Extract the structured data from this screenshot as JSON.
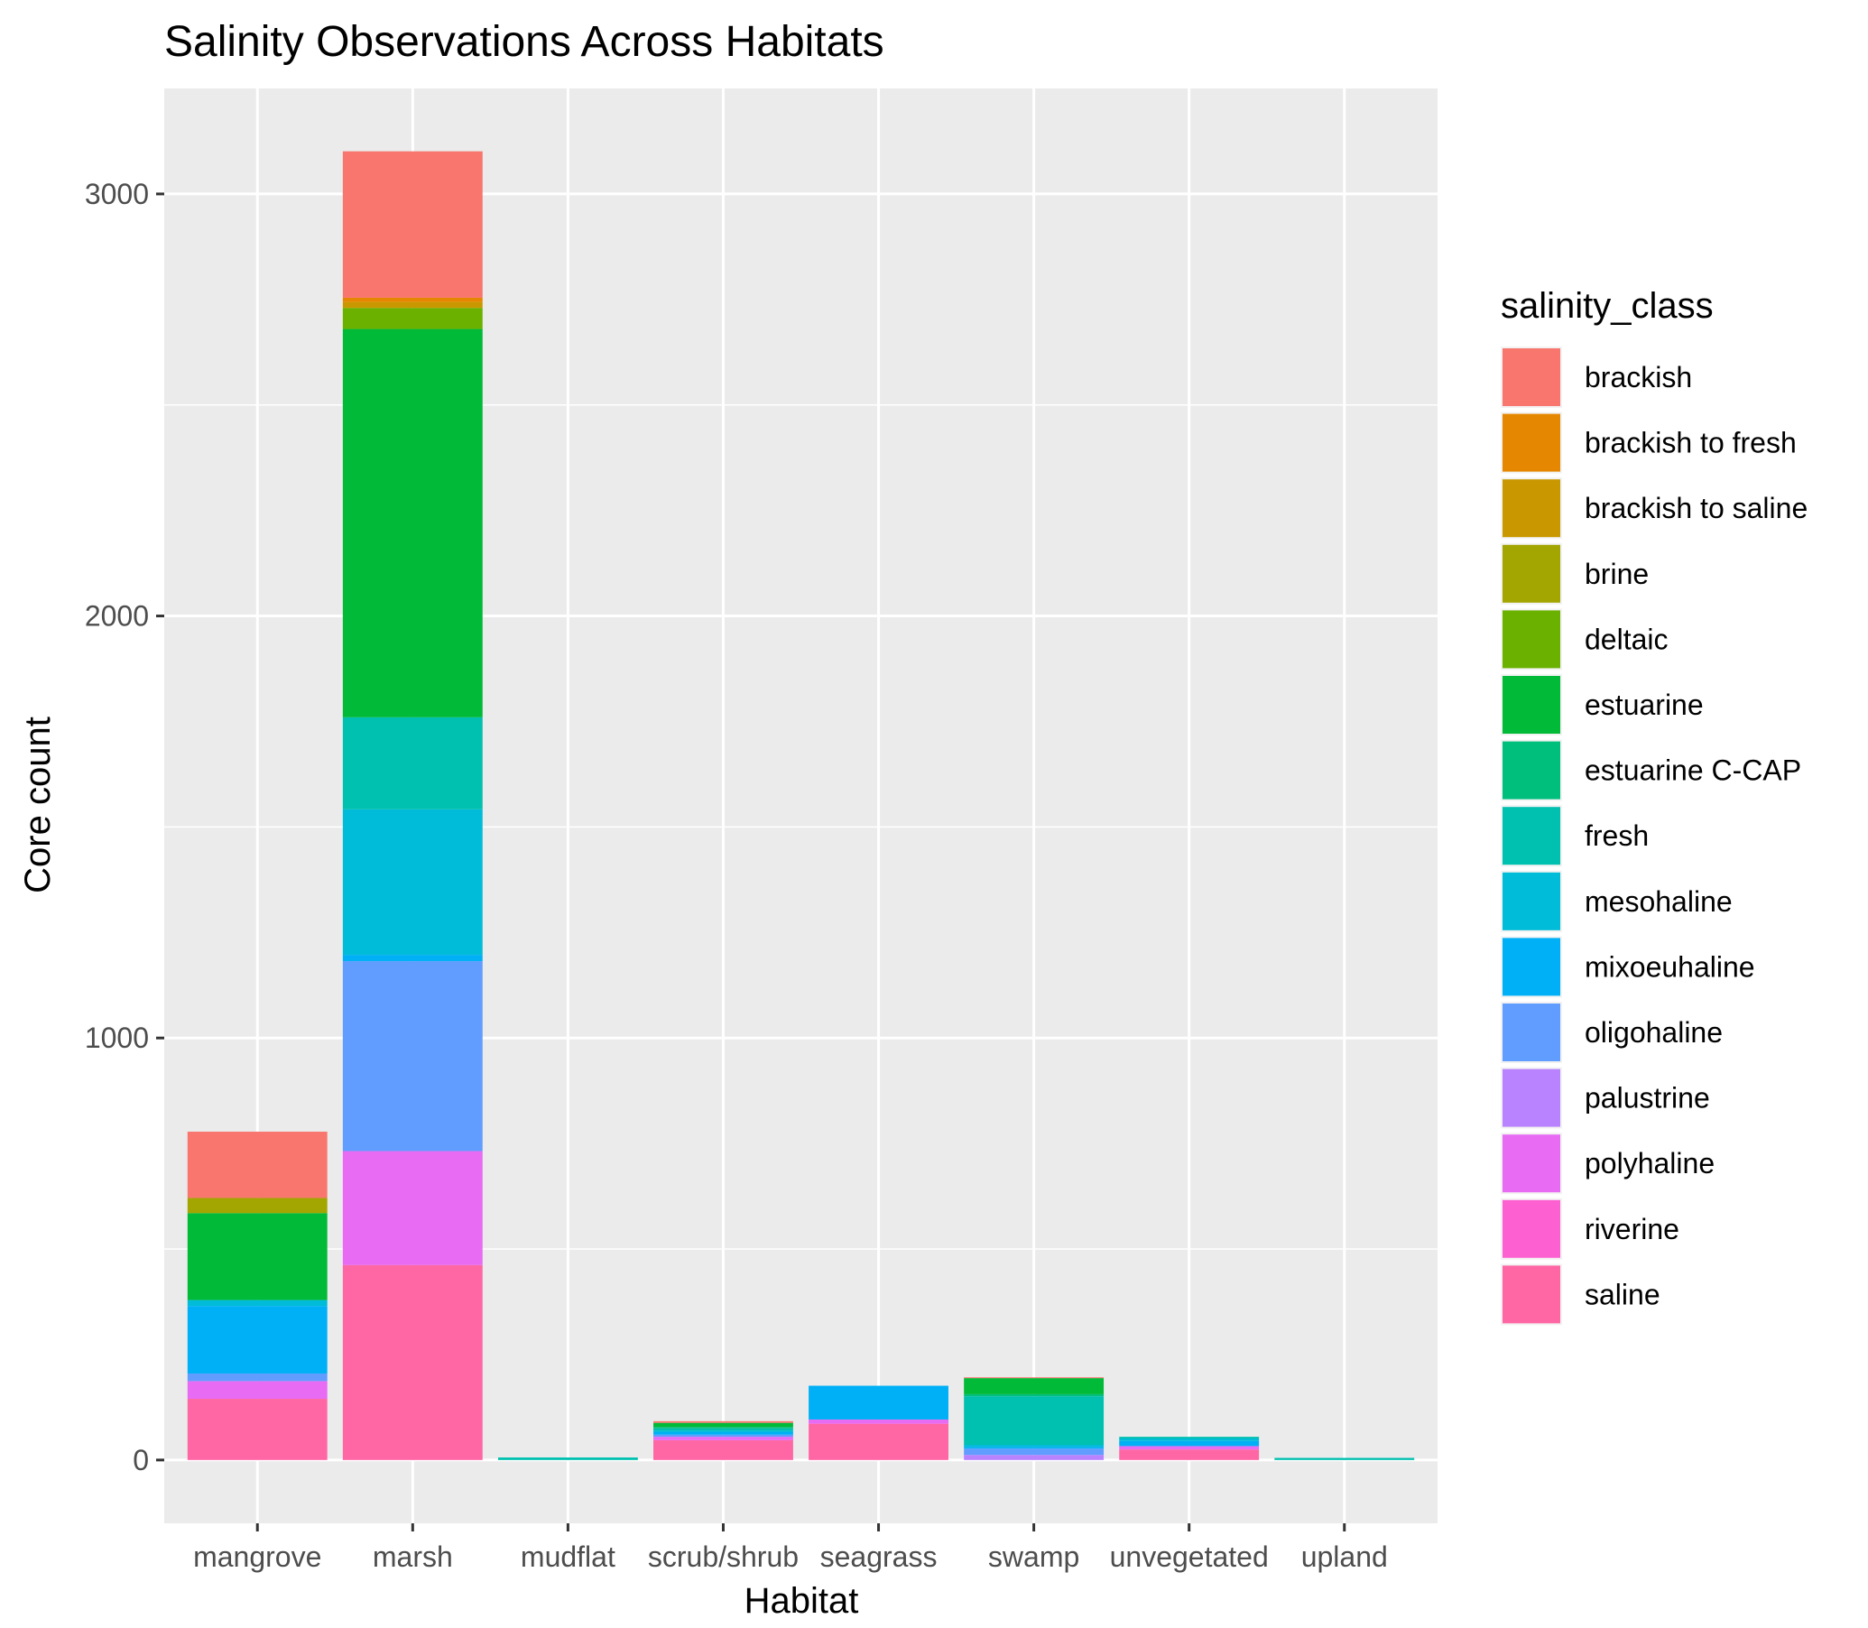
{
  "chart_data": {
    "type": "bar",
    "stacked": true,
    "title": "Salinity Observations Across Habitats",
    "xlabel": "Habitat",
    "ylabel": "Core count",
    "ylim": [
      -150,
      3250
    ],
    "yticks": [
      0,
      1000,
      2000,
      3000
    ],
    "grid": true,
    "legend_title": "salinity_class",
    "legend_position": "right",
    "categories": [
      "mangrove",
      "marsh",
      "mudflat",
      "scrub/shrub",
      "seagrass",
      "swamp",
      "unvegetated",
      "upland"
    ],
    "series": [
      {
        "name": "brackish",
        "color": "#F8766D",
        "values": [
          157,
          347,
          0,
          4,
          0,
          2,
          0,
          0
        ]
      },
      {
        "name": "brackish to fresh",
        "color": "#E58700",
        "values": [
          0,
          10,
          0,
          0,
          0,
          0,
          0,
          0
        ]
      },
      {
        "name": "brackish to saline",
        "color": "#C99800",
        "values": [
          0,
          14,
          0,
          0,
          0,
          0,
          0,
          0
        ]
      },
      {
        "name": "brine",
        "color": "#A3A500",
        "values": [
          36,
          0,
          0,
          0,
          0,
          0,
          0,
          0
        ]
      },
      {
        "name": "deltaic",
        "color": "#6BB100",
        "values": [
          0,
          50,
          0,
          0,
          0,
          0,
          0,
          0
        ]
      },
      {
        "name": "estuarine",
        "color": "#00BA38",
        "values": [
          206,
          920,
          0,
          10,
          0,
          38,
          0,
          0
        ]
      },
      {
        "name": "estuarine C-CAP",
        "color": "#00BF7D",
        "values": [
          0,
          0,
          0,
          3,
          0,
          5,
          0,
          0
        ]
      },
      {
        "name": "fresh",
        "color": "#00C0AF",
        "values": [
          0,
          218,
          6,
          5,
          0,
          115,
          4,
          5
        ]
      },
      {
        "name": "mesohaline",
        "color": "#00BCD8",
        "values": [
          14,
          345,
          0,
          4,
          0,
          5,
          6,
          0
        ]
      },
      {
        "name": "mixoeuhaline",
        "color": "#00B0F6",
        "values": [
          160,
          15,
          0,
          6,
          80,
          4,
          12,
          0
        ]
      },
      {
        "name": "oligohaline",
        "color": "#619CFF",
        "values": [
          18,
          450,
          0,
          5,
          0,
          15,
          0,
          0
        ]
      },
      {
        "name": "palustrine",
        "color": "#B983FF",
        "values": [
          0,
          0,
          0,
          0,
          0,
          12,
          0,
          0
        ]
      },
      {
        "name": "polyhaline",
        "color": "#E76BF3",
        "values": [
          42,
          270,
          0,
          8,
          10,
          0,
          8,
          0
        ]
      },
      {
        "name": "riverine",
        "color": "#FD61D1",
        "values": [
          0,
          0,
          0,
          0,
          0,
          0,
          0,
          0
        ]
      },
      {
        "name": "saline",
        "color": "#FF67A4",
        "values": [
          145,
          462,
          0,
          47,
          86,
          0,
          25,
          0
        ]
      }
    ]
  }
}
